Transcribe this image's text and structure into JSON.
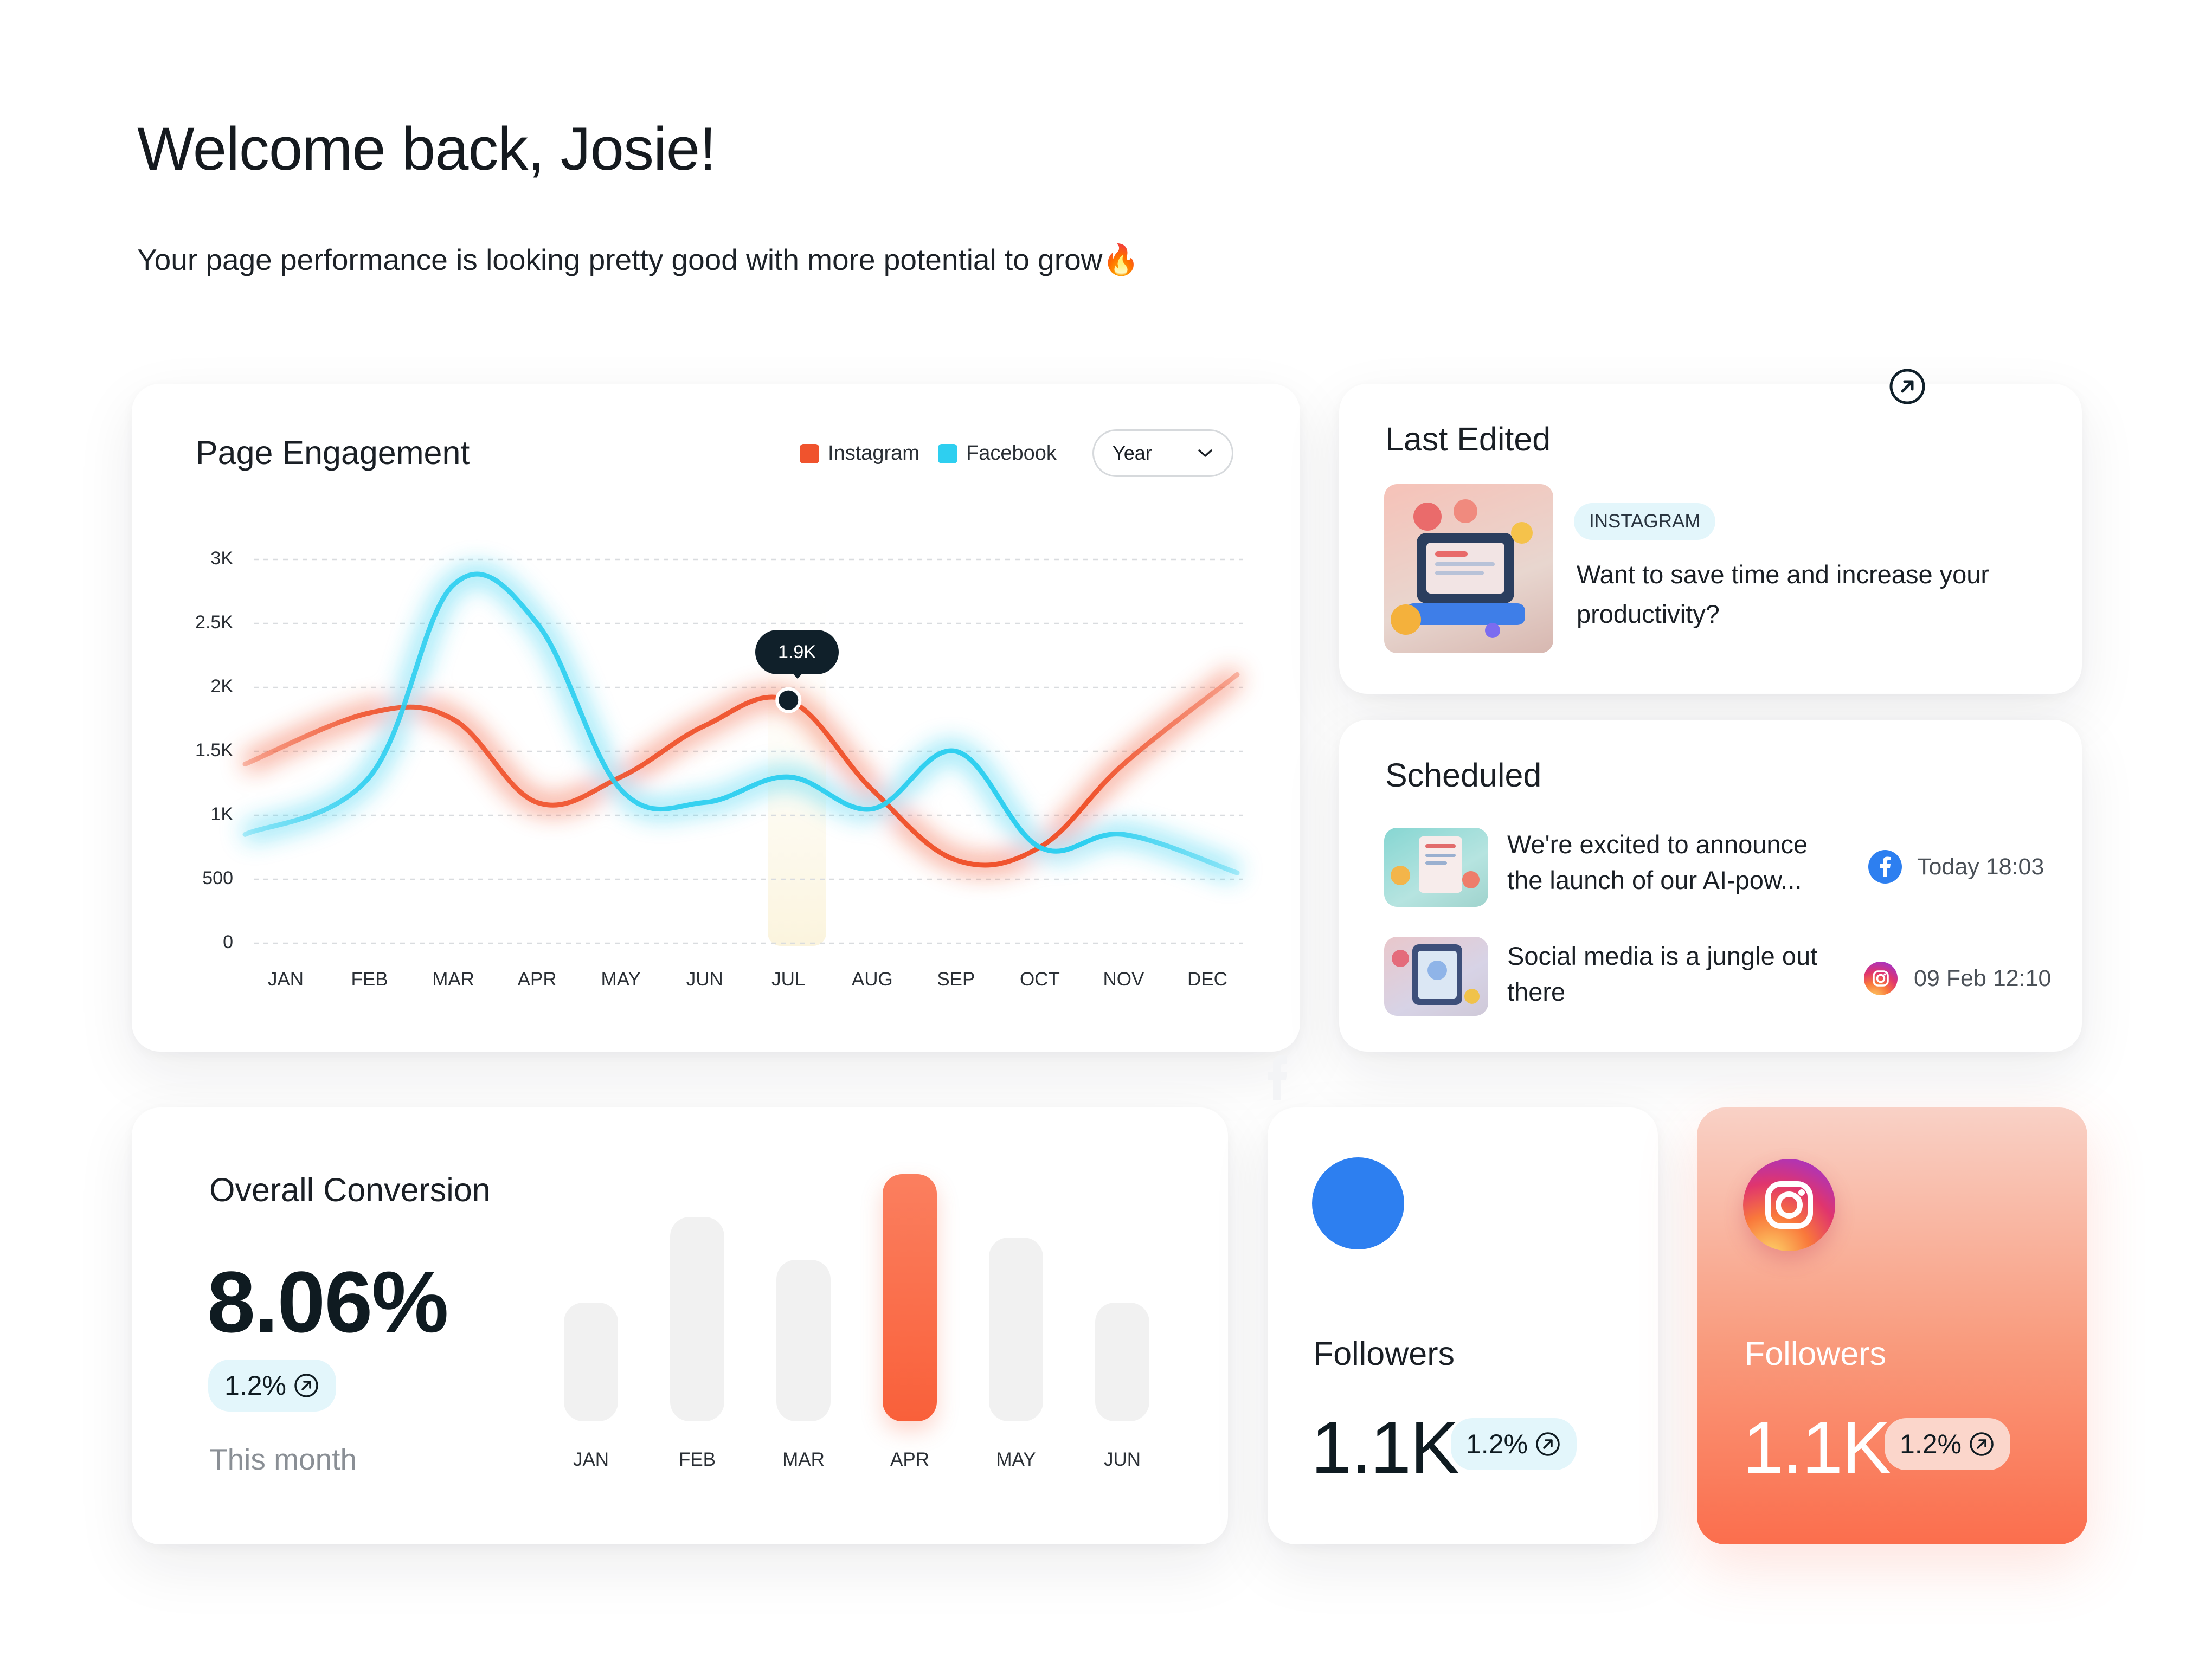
{
  "header": {
    "welcome": "Welcome back, Josie!",
    "subtitle": "Your page performance is looking pretty good with more potential to grow🔥"
  },
  "engagement": {
    "title": "Page Engagement",
    "legend": [
      {
        "name": "Instagram",
        "color": "#f0532d"
      },
      {
        "name": "Facebook",
        "color": "#2ecff0"
      }
    ],
    "period_select": "Year",
    "tooltip": "1.9K"
  },
  "chart_data": {
    "type": "line",
    "title": "Page Engagement",
    "categories": [
      "JAN",
      "FEB",
      "MAR",
      "APR",
      "MAY",
      "JUN",
      "JUL",
      "AUG",
      "SEP",
      "OCT",
      "NOV",
      "DEC"
    ],
    "y_ticks": [
      "3K",
      "2.5K",
      "2K",
      "1.5K",
      "1K",
      "500",
      "0"
    ],
    "ylim": [
      0,
      3000
    ],
    "grid": true,
    "legend_position": "top-right",
    "series": [
      {
        "name": "Instagram",
        "color": "#f0532d",
        "values": [
          1400,
          1800,
          1750,
          1100,
          1300,
          1700,
          1900,
          1200,
          650,
          750,
          1400,
          2100
        ]
      },
      {
        "name": "Facebook",
        "color": "#2ecff0",
        "values": [
          850,
          1300,
          2800,
          2500,
          1200,
          1100,
          1300,
          1050,
          1500,
          750,
          850,
          550
        ]
      }
    ]
  },
  "last_edited": {
    "title": "Last Edited",
    "platform": "INSTAGRAM",
    "text": "Want to save time and increase your productivity?"
  },
  "scheduled": {
    "title": "Scheduled",
    "items": [
      {
        "text": "We're excited to announce the launch of our AI-pow...",
        "platform": "facebook",
        "time": "Today 18:03"
      },
      {
        "text": "Social media is a jungle out there",
        "platform": "instagram",
        "time": "09 Feb 12:10"
      }
    ]
  },
  "conversion": {
    "title": "Overall Conversion",
    "value": "8.06%",
    "change": "1.2%",
    "period": "This month",
    "bars": {
      "categories": [
        "JAN",
        "FEB",
        "MAR",
        "APR",
        "MAY",
        "JUN"
      ],
      "values": [
        0.47,
        0.81,
        0.64,
        0.98,
        0.73,
        0.47
      ],
      "highlight_index": 3,
      "highlight_color": "#f9603a"
    }
  },
  "facebook_followers": {
    "label": "Followers",
    "value": "1.1K",
    "change": "1.2%",
    "brand_color": "#2d7ff0"
  },
  "instagram_followers": {
    "label": "Followers",
    "value": "1.1K",
    "change": "1.2%"
  },
  "colors": {
    "accent_pill": "#e3f6fb",
    "text_dark": "#0f1b21"
  }
}
